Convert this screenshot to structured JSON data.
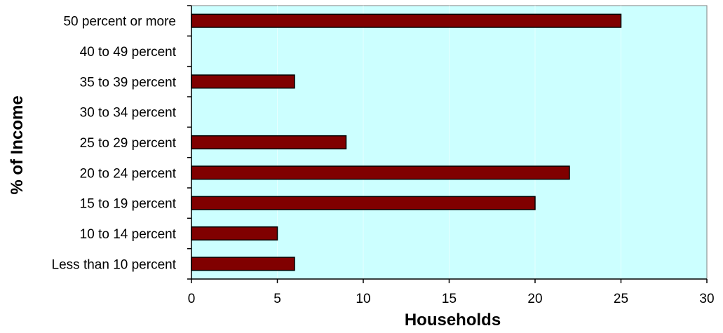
{
  "colors": {
    "plot_background": "#ccffff",
    "bar_fill": "#800000",
    "bar_stroke": "#000000",
    "gridline": "#e6ffff",
    "axis": "#000000",
    "plot_border": "#808080"
  },
  "chart_data": {
    "type": "bar",
    "orientation": "horizontal",
    "title": "",
    "xlabel": "Households",
    "ylabel": "% of Income",
    "xlim": [
      0,
      30
    ],
    "xticks": [
      0,
      5,
      10,
      15,
      20,
      25,
      30
    ],
    "grid": true,
    "legend": "none",
    "categories": [
      "50 percent or more",
      "40 to 49 percent",
      "35 to 39 percent",
      "30 to 34 percent",
      "25 to 29 percent",
      "20 to 24 percent",
      "15 to 19 percent",
      "10 to 14 percent",
      "Less than 10 percent"
    ],
    "values": [
      25,
      0,
      6,
      0,
      9,
      22,
      20,
      5,
      6
    ]
  }
}
